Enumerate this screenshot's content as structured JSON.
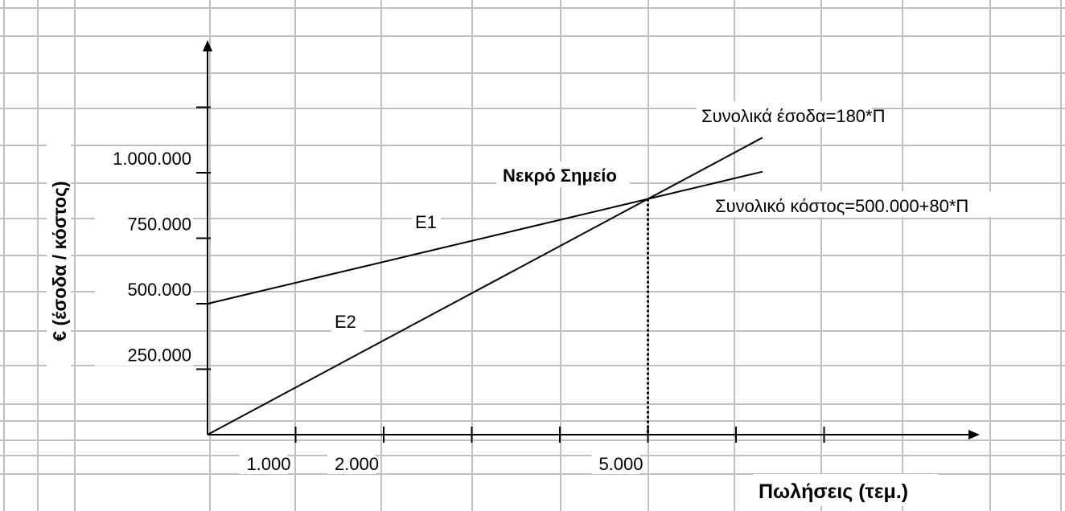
{
  "chart_data": {
    "type": "line",
    "ylabel": "€ (έσοδα / κόστος)",
    "xlabel": "Πωλήσεις (τεμ.)",
    "x_ticks": [
      {
        "value": 1000,
        "label": "1.000"
      },
      {
        "value": 2000,
        "label": "2.000"
      },
      {
        "value": 3000,
        "label": ""
      },
      {
        "value": 4000,
        "label": ""
      },
      {
        "value": 5000,
        "label": "5.000"
      },
      {
        "value": 6000,
        "label": ""
      },
      {
        "value": 7000,
        "label": ""
      }
    ],
    "y_ticks": [
      {
        "value": 250000,
        "label": "250.000"
      },
      {
        "value": 500000,
        "label": "500.000"
      },
      {
        "value": 750000,
        "label": "750.000"
      },
      {
        "value": 1000000,
        "label": "1.000.000"
      },
      {
        "value": 1250000,
        "label": ""
      }
    ],
    "xlim": [
      0,
      8600
    ],
    "ylim": [
      0,
      1650000
    ],
    "series": [
      {
        "name": "Συνολικό κόστος=500.000+80*Π",
        "short": "E1",
        "x": [
          0,
          6300
        ],
        "y": [
          500000,
          1004000
        ]
      },
      {
        "name": "Συνολικά έσοδα=180*Π",
        "short": "E2",
        "x": [
          0,
          6300
        ],
        "y": [
          0,
          1134000
        ]
      }
    ],
    "annotations": {
      "break_even_label": "Νεκρό Σημείο",
      "break_even_x": 5000,
      "break_even_y": 900000,
      "e1_label": "E1",
      "e2_label": "E2",
      "revenue_label": "Συνολικά έσοδα=180*Π",
      "cost_label": "Συνολικό κόστος=500.000+80*Π"
    },
    "grid": true
  },
  "colors": {
    "grid": "#c0c0c0",
    "axis": "#000000",
    "line": "#000000",
    "background": "#ffffff"
  }
}
